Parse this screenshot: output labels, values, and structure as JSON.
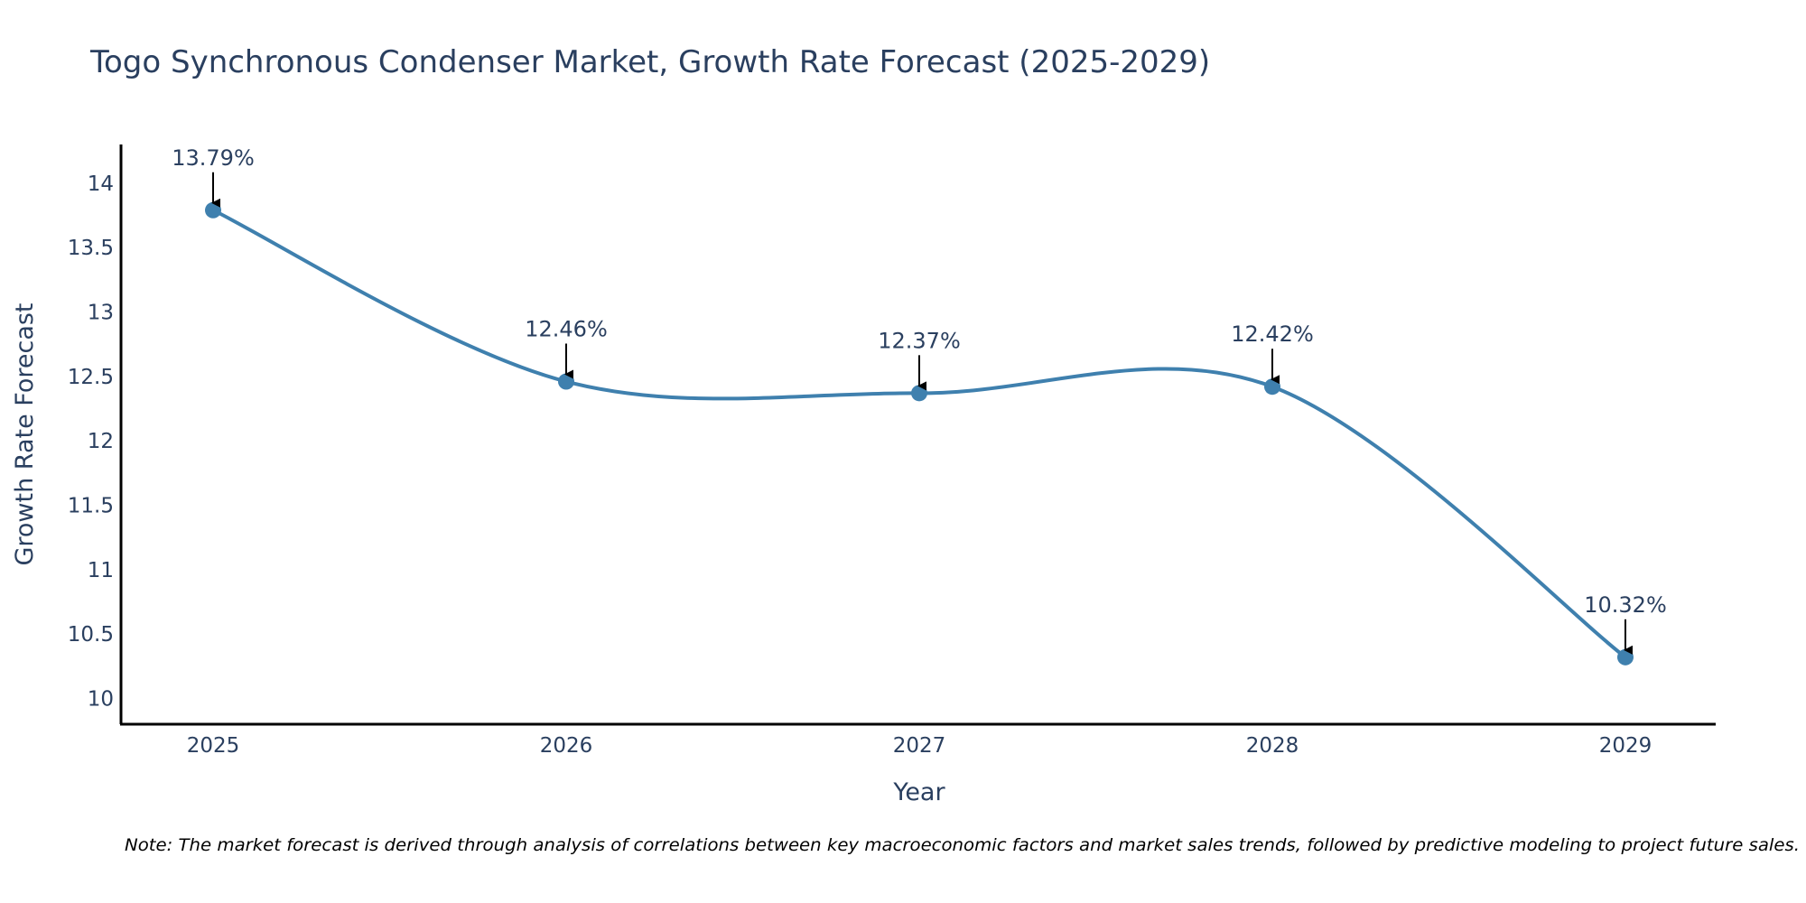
{
  "colors": {
    "line": "#3f80ae",
    "marker": "#3f80ae",
    "axis": "#000000",
    "text": "#2a3f5f",
    "arrow": "#000000"
  },
  "chart_data": {
    "type": "line",
    "title": "Togo Synchronous Condenser Market, Growth Rate Forecast (2025-2029)",
    "xlabel": "Year",
    "ylabel": "Growth Rate Forecast",
    "x": [
      "2025",
      "2026",
      "2027",
      "2028",
      "2029"
    ],
    "series": [
      {
        "name": "Growth Rate Forecast",
        "values": [
          13.79,
          12.46,
          12.37,
          12.42,
          10.32
        ]
      }
    ],
    "data_labels": [
      "13.79%",
      "12.46%",
      "12.37%",
      "12.42%",
      "10.32%"
    ],
    "yticks": [
      10,
      10.5,
      11,
      11.5,
      12,
      12.5,
      13,
      13.5,
      14
    ],
    "ytick_labels": [
      "10",
      "10.5",
      "11",
      "11.5",
      "12",
      "12.5",
      "13",
      "13.5",
      "14"
    ],
    "ylim": [
      9.8,
      14.3
    ],
    "line_shape": "spline",
    "grid": false,
    "note": "Note: The market forecast is derived through analysis of correlations between key macroeconomic factors and market sales trends, followed by predictive modeling to project future sales."
  }
}
